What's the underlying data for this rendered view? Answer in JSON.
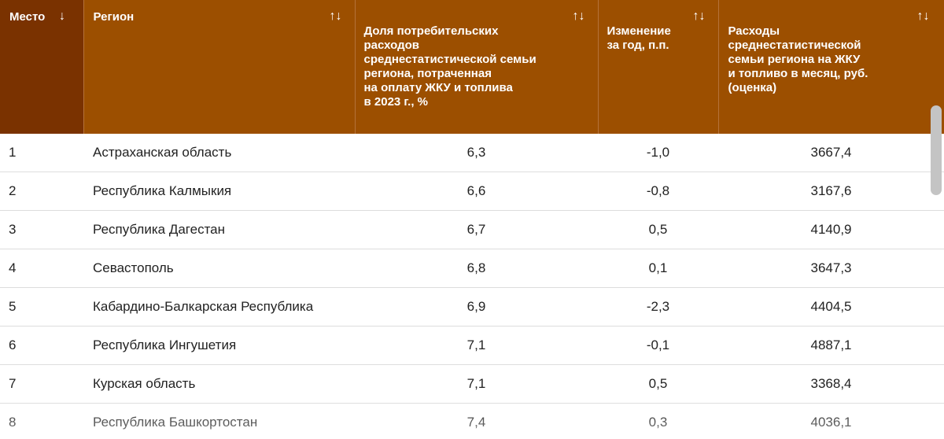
{
  "colors": {
    "header_bg": "#9c4f00",
    "header_sorted_bg": "#7a3200",
    "header_text": "#ffffff"
  },
  "table": {
    "columns": [
      {
        "label": "Место",
        "sort_icon": "↓",
        "icon_name": "sort-desc-icon"
      },
      {
        "label": "Регион",
        "sort_icon": "↑↓",
        "icon_name": "sort-icon"
      },
      {
        "label": "Доля потребительских\nрасходов\nсреднестатистической семьи\nрегиона, потраченная\nна оплату ЖКУ и топлива\nв 2023 г., %",
        "sort_icon": "↑↓",
        "icon_name": "sort-icon"
      },
      {
        "label": "Изменение\nза год, п.п.",
        "sort_icon": "↑↓",
        "icon_name": "sort-icon"
      },
      {
        "label": "Расходы\nсреднестатистической\nсемьи региона на ЖКУ\nи топливо в месяц, руб.\n(оценка)",
        "sort_icon": "↑↓",
        "icon_name": "sort-icon"
      }
    ],
    "rows": [
      {
        "place": "1",
        "region": "Астраханская область",
        "share": "6,3",
        "change": "-1,0",
        "expenses": "3667,4"
      },
      {
        "place": "2",
        "region": "Республика Калмыкия",
        "share": "6,6",
        "change": "-0,8",
        "expenses": "3167,6"
      },
      {
        "place": "3",
        "region": "Республика Дагестан",
        "share": "6,7",
        "change": "0,5",
        "expenses": "4140,9"
      },
      {
        "place": "4",
        "region": "Севастополь",
        "share": "6,8",
        "change": "0,1",
        "expenses": "3647,3"
      },
      {
        "place": "5",
        "region": "Кабардино-Балкарская Республика",
        "share": "6,9",
        "change": "-2,3",
        "expenses": "4404,5"
      },
      {
        "place": "6",
        "region": "Республика Ингушетия",
        "share": "7,1",
        "change": "-0,1",
        "expenses": "4887,1"
      },
      {
        "place": "7",
        "region": "Курская область",
        "share": "7,1",
        "change": "0,5",
        "expenses": "3368,4"
      },
      {
        "place": "8",
        "region": "Республика Башкортостан",
        "share": "7,4",
        "change": "0,3",
        "expenses": "4036,1"
      }
    ]
  }
}
